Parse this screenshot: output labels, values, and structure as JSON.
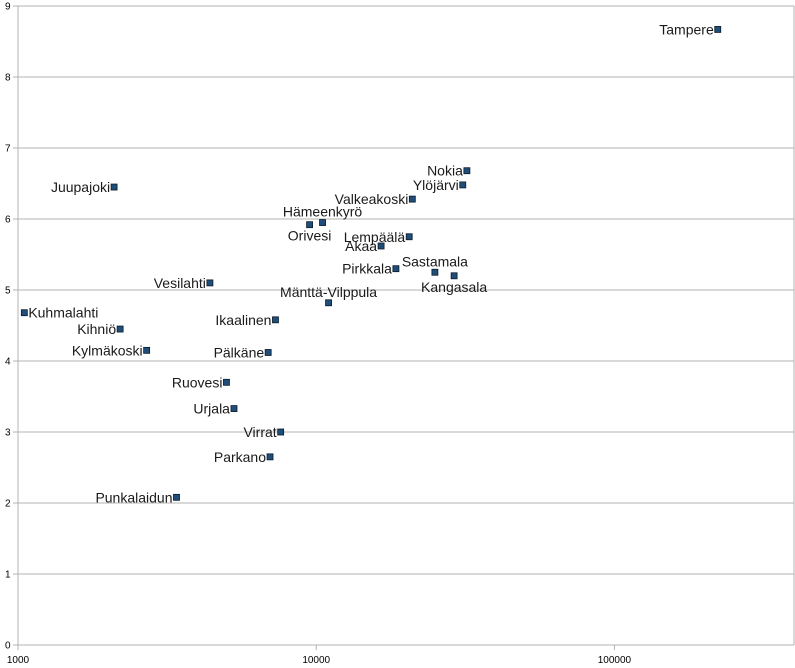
{
  "chart_data": {
    "type": "scatter",
    "title": "",
    "xlabel": "",
    "ylabel": "",
    "xscale": "log",
    "xlim": [
      1000,
      400000
    ],
    "ylim": [
      0,
      9
    ],
    "x_ticks": [
      "1000",
      "10000",
      "100000"
    ],
    "y_ticks": [
      "0",
      "1",
      "2",
      "3",
      "4",
      "5",
      "6",
      "7",
      "8",
      "9"
    ],
    "grid": "horizontal",
    "legend": "none",
    "marker_color": "#1f4e79",
    "points": [
      {
        "label": "Tampere",
        "x": 222000,
        "y": 8.67,
        "label_pos": "left"
      },
      {
        "label": "Nokia",
        "x": 32000,
        "y": 6.68,
        "label_pos": "left"
      },
      {
        "label": "Ylöjärvi",
        "x": 31000,
        "y": 6.48,
        "label_pos": "left"
      },
      {
        "label": "Valkeakoski",
        "x": 21000,
        "y": 6.28,
        "label_pos": "left"
      },
      {
        "label": "Juupajoki",
        "x": 2100,
        "y": 6.45,
        "label_pos": "left"
      },
      {
        "label": "Hämeenkyrö",
        "x": 10500,
        "y": 5.95,
        "label_pos": "above"
      },
      {
        "label": "Orivesi",
        "x": 9500,
        "y": 5.92,
        "label_pos": "below"
      },
      {
        "label": "Lempäälä",
        "x": 20500,
        "y": 5.75,
        "label_pos": "left"
      },
      {
        "label": "Akaa",
        "x": 16500,
        "y": 5.62,
        "label_pos": "left"
      },
      {
        "label": "Pirkkala",
        "x": 18500,
        "y": 5.3,
        "label_pos": "left"
      },
      {
        "label": "Sastamala",
        "x": 25000,
        "y": 5.25,
        "label_pos": "above"
      },
      {
        "label": "Kangasala",
        "x": 29000,
        "y": 5.2,
        "label_pos": "below"
      },
      {
        "label": "Vesilahti",
        "x": 4400,
        "y": 5.1,
        "label_pos": "left"
      },
      {
        "label": "Mänttä-Vilppula",
        "x": 11000,
        "y": 4.82,
        "label_pos": "above"
      },
      {
        "label": "Kuhmalahti",
        "x": 1050,
        "y": 4.68,
        "label_pos": "right"
      },
      {
        "label": "Ikaalinen",
        "x": 7300,
        "y": 4.58,
        "label_pos": "left"
      },
      {
        "label": "Kihniö",
        "x": 2200,
        "y": 4.45,
        "label_pos": "left"
      },
      {
        "label": "Kylmäkoski",
        "x": 2700,
        "y": 4.15,
        "label_pos": "left"
      },
      {
        "label": "Pälkäne",
        "x": 6900,
        "y": 4.12,
        "label_pos": "left"
      },
      {
        "label": "Ruovesi",
        "x": 5000,
        "y": 3.7,
        "label_pos": "left"
      },
      {
        "label": "Urjala",
        "x": 5300,
        "y": 3.33,
        "label_pos": "left"
      },
      {
        "label": "Virrat",
        "x": 7600,
        "y": 3.0,
        "label_pos": "left"
      },
      {
        "label": "Parkano",
        "x": 7000,
        "y": 2.65,
        "label_pos": "left"
      },
      {
        "label": "Punkalaidun",
        "x": 3400,
        "y": 2.08,
        "label_pos": "left"
      }
    ]
  }
}
